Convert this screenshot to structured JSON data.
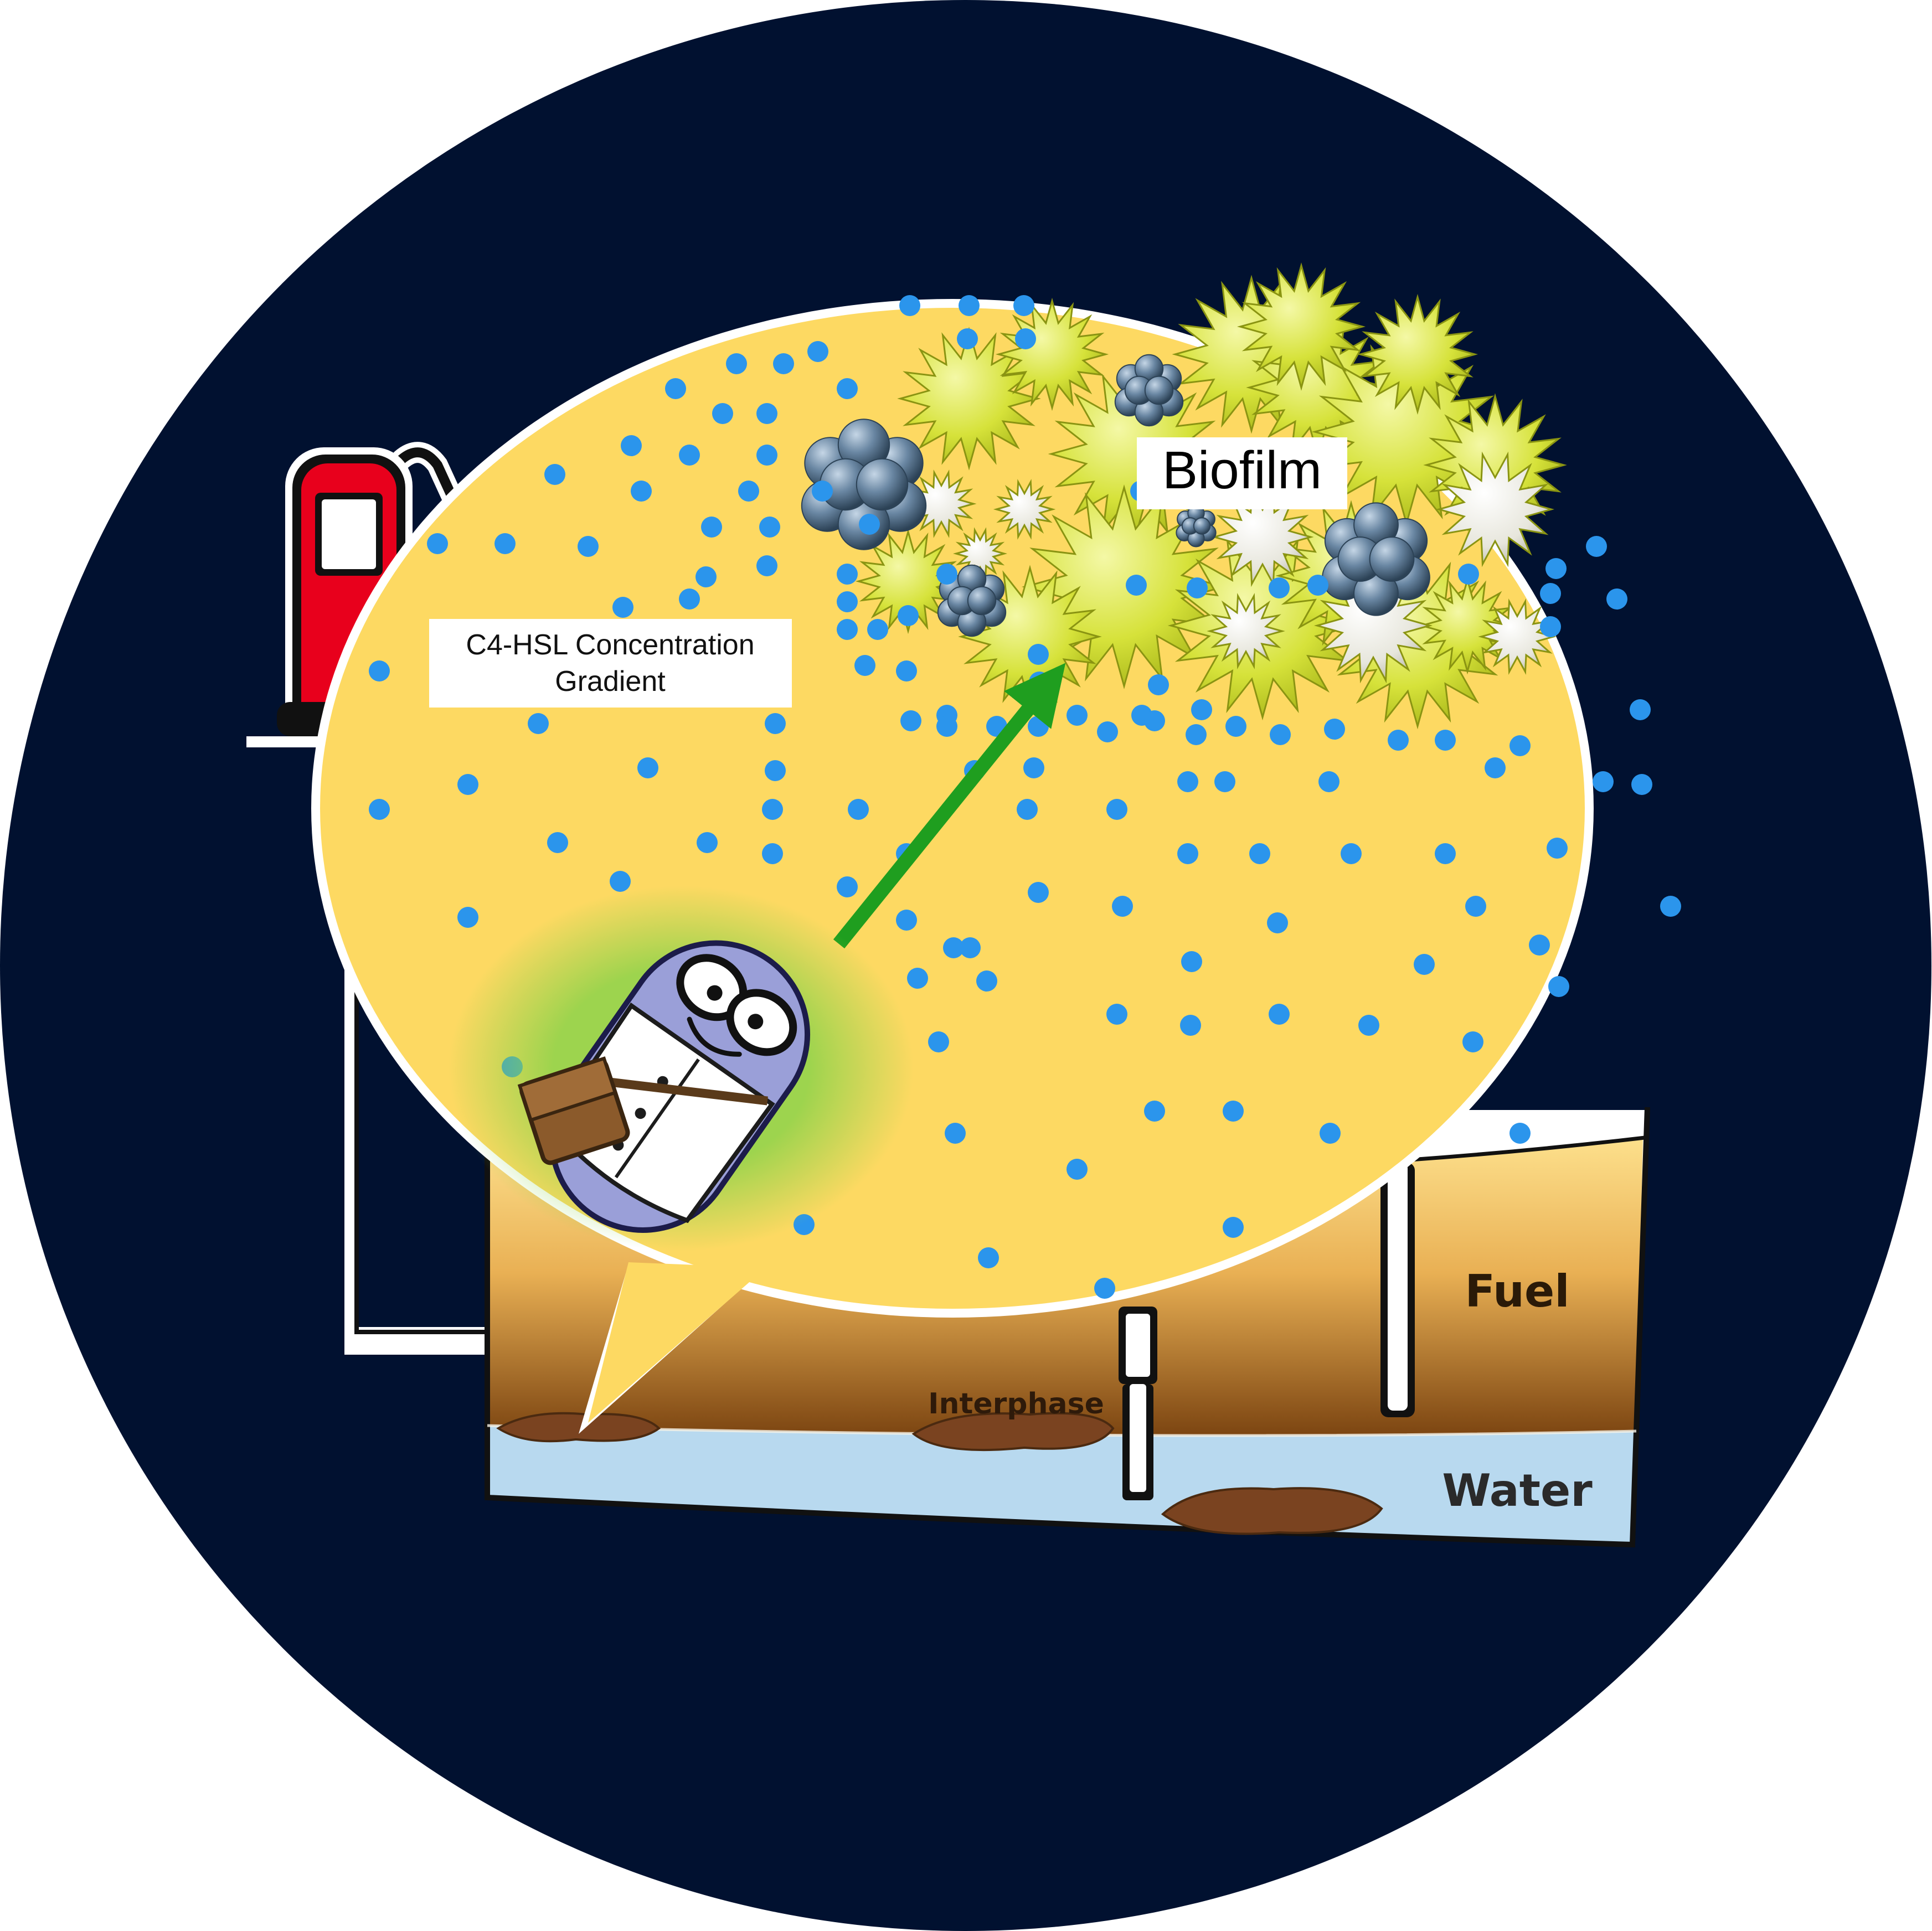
{
  "labels": {
    "biofilm": "Biofilm",
    "gradient_line1": "C4-HSL Concentration",
    "gradient_line2": "Gradient",
    "fuel": "Fuel",
    "interphase": "Interphase",
    "water": "Water"
  },
  "colors": {
    "background_disc": "#011130",
    "bubble_fill": "#fdd962",
    "signal_dot": "#2b95ec",
    "fuel_top": "#fde08c",
    "fuel_bottom": "#7a4310",
    "water": "#b8d9ef",
    "pump_red": "#e8001c",
    "arrow_green": "#1f9e1f",
    "bacterium": "#9a9fd8",
    "biofilm_yellow": "#d4e034",
    "biofilm_blue_cluster": "#536e8a"
  },
  "icons": {
    "pump": "fuel-pump-icon",
    "bacterium": "scientist-bacterium-icon",
    "arrow": "chemotaxis-arrow-icon",
    "cluster": "cell-cluster-icon"
  }
}
